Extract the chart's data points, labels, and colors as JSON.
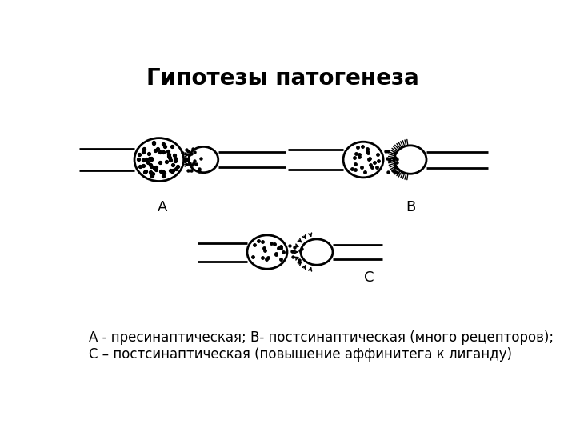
{
  "title": "Гипотезы патогенеза",
  "title_fontsize": 20,
  "title_fontweight": "bold",
  "caption": "А - пресинаптическая; В- постсинаптическая (много рецепторов);\nС – постсинаптическая (повышение аффинитега к лиганду)",
  "caption_fontsize": 12,
  "background_color": "#ffffff",
  "line_color": "#000000",
  "label_A": "А",
  "label_B": "В",
  "label_C": "С"
}
